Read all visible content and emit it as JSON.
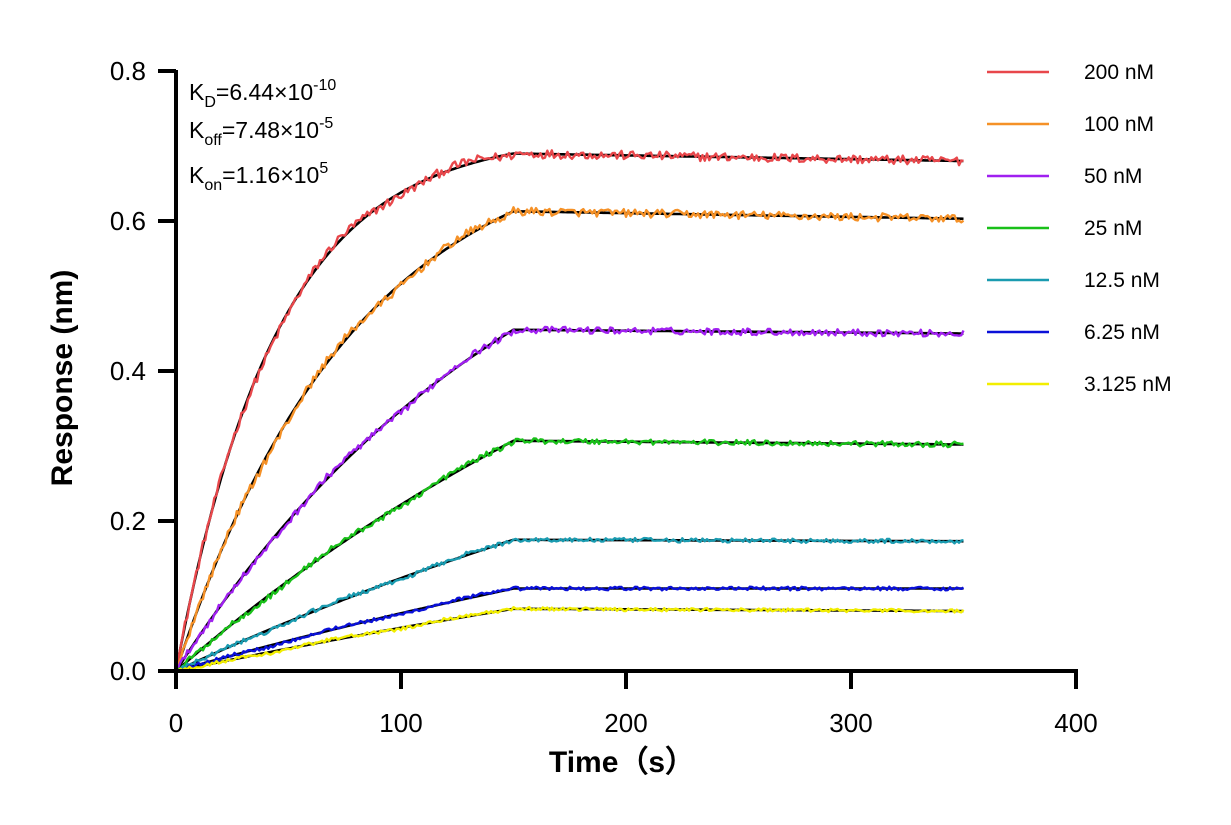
{
  "chart_data": {
    "type": "line",
    "xlabel": "Time（s）",
    "ylabel": "Response (nm)",
    "xlim": [
      0,
      400
    ],
    "ylim": [
      0,
      0.8
    ],
    "x_ticks": [
      "0",
      "100",
      "200",
      "300",
      "400"
    ],
    "y_ticks": [
      "0.0",
      "0.2",
      "0.4",
      "0.6",
      "0.8"
    ],
    "grid": false,
    "legend_position": "right",
    "association_end_s": 150,
    "dissociation_end_s": 350,
    "annotations": {
      "kd": {
        "base": "K",
        "sub": "D",
        "eq": "=6.44×10",
        "sup": "-10"
      },
      "koff": {
        "base": "K",
        "sub": "off",
        "eq": "=7.48×10",
        "sup": "-5"
      },
      "kon": {
        "base": "K",
        "sub": "on",
        "eq": "=1.16×10",
        "sup": "5"
      }
    },
    "series": [
      {
        "name": "200 nM",
        "color": "#e8474b",
        "peak": 0.69,
        "end": 0.68,
        "tau": 45
      },
      {
        "name": "100 nM",
        "color": "#f59127",
        "peak": 0.613,
        "end": 0.603,
        "tau": 80
      },
      {
        "name": "50 nM",
        "color": "#a020f0",
        "peak": 0.455,
        "end": 0.45,
        "tau": 160
      },
      {
        "name": "25 nM",
        "color": "#19c019",
        "peak": 0.307,
        "end": 0.302,
        "tau": 290
      },
      {
        "name": "12.5 nM",
        "color": "#1a9bb0",
        "peak": 0.175,
        "end": 0.173,
        "tau": 400
      },
      {
        "name": "6.25 nM",
        "color": "#0a10d8",
        "peak": 0.11,
        "end": 0.11,
        "tau": 500
      },
      {
        "name": "3.125 nM",
        "color": "#f2ee00",
        "peak": 0.083,
        "end": 0.08,
        "tau": 600
      }
    ]
  }
}
